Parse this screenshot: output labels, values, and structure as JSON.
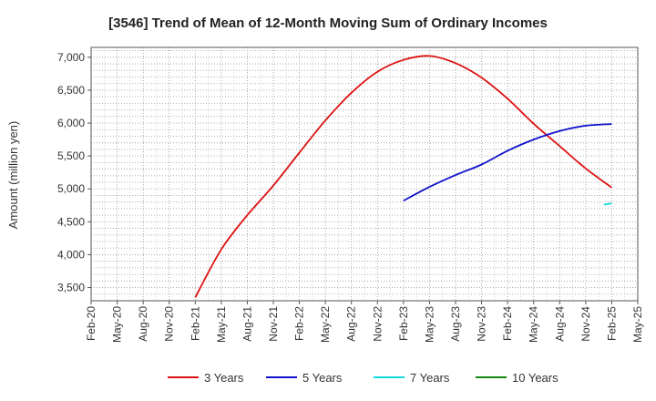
{
  "chart_data": {
    "type": "line",
    "title": "[3546]  Trend of Mean of 12-Month Moving Sum of Ordinary Incomes",
    "xlabel": "",
    "ylabel": "Amount (million yen)",
    "ylim": [
      3300,
      7150
    ],
    "yticks": [
      3500,
      4000,
      4500,
      5000,
      5500,
      6000,
      6500,
      7000
    ],
    "ytick_labels": [
      "3,500",
      "4,000",
      "4,500",
      "5,000",
      "5,500",
      "6,000",
      "6,500",
      "7,000"
    ],
    "x_categories": [
      "Feb-20",
      "May-20",
      "Aug-20",
      "Nov-20",
      "Feb-21",
      "May-21",
      "Aug-21",
      "Nov-21",
      "Feb-22",
      "May-22",
      "Aug-22",
      "Nov-22",
      "Feb-23",
      "May-23",
      "Aug-23",
      "Nov-23",
      "Feb-24",
      "May-24",
      "Aug-24",
      "Nov-24",
      "Feb-25",
      "May-25"
    ],
    "grid": true,
    "series": [
      {
        "name": "3 Years",
        "color": "#dd1111",
        "points": [
          [
            4,
            3350
          ],
          [
            5,
            4080
          ],
          [
            6,
            4600
          ],
          [
            7,
            5050
          ],
          [
            8,
            5550
          ],
          [
            9,
            6040
          ],
          [
            10,
            6460
          ],
          [
            11,
            6780
          ],
          [
            12,
            6960
          ],
          [
            13,
            7020
          ],
          [
            14,
            6910
          ],
          [
            15,
            6690
          ],
          [
            16,
            6370
          ],
          [
            17,
            5990
          ],
          [
            18,
            5650
          ],
          [
            19,
            5310
          ],
          [
            20,
            5020
          ]
        ]
      },
      {
        "name": "5 Years",
        "color": "#1111cc",
        "points": [
          [
            12,
            4820
          ],
          [
            13,
            5030
          ],
          [
            14,
            5210
          ],
          [
            15,
            5370
          ],
          [
            16,
            5580
          ],
          [
            17,
            5750
          ],
          [
            18,
            5880
          ],
          [
            19,
            5960
          ],
          [
            20,
            5985
          ]
        ]
      },
      {
        "name": "7 Years",
        "color": "#11dddd",
        "points": [
          [
            19.7,
            4760
          ],
          [
            20,
            4780
          ]
        ]
      },
      {
        "name": "10 Years",
        "color": "#118811",
        "points": []
      }
    ]
  }
}
